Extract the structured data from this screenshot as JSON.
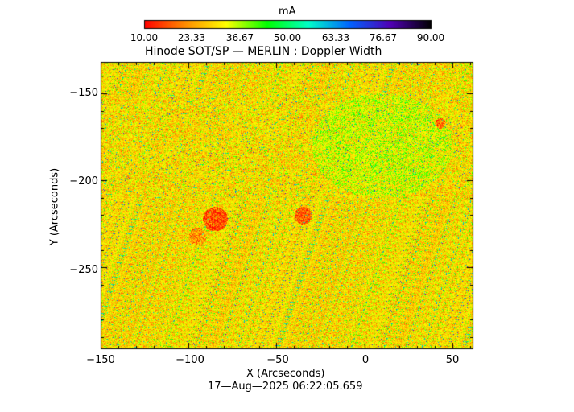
{
  "colorbar": {
    "unit_label": "mA",
    "ticks": [
      "10.00",
      "23.33",
      "36.67",
      "50.00",
      "63.33",
      "76.67",
      "90.00"
    ],
    "range": [
      10,
      90
    ],
    "stops": [
      "#ff0000",
      "#ff8c00",
      "#ffff00",
      "#00ff00",
      "#00ffc8",
      "#0064ff",
      "#5000b4",
      "#000000"
    ]
  },
  "plot": {
    "title": "Hinode SOT/SP — MERLIN : Doppler Width",
    "xlabel": "X (Arcseconds)",
    "ylabel": "Y (Arcseconds)",
    "timestamp": "17—Aug—2025 06:22:05.659",
    "x_ticks": [
      "−150",
      "−100",
      "−50",
      "0",
      "50"
    ],
    "y_ticks": [
      "−150",
      "−200",
      "−250"
    ]
  },
  "chart_data": {
    "type": "heatmap",
    "title": "Hinode SOT/SP — MERLIN : Doppler Width",
    "xlabel": "X (Arcseconds)",
    "ylabel": "Y (Arcseconds)",
    "colorbar_label": "mA",
    "value_range": [
      10,
      90
    ],
    "xlim": [
      -150,
      62
    ],
    "ylim": [
      -297,
      -132
    ],
    "x_tick_values": [
      -150,
      -100,
      -50,
      0,
      50
    ],
    "y_tick_values": [
      -150,
      -200,
      -250
    ],
    "typical_value": 30
  }
}
